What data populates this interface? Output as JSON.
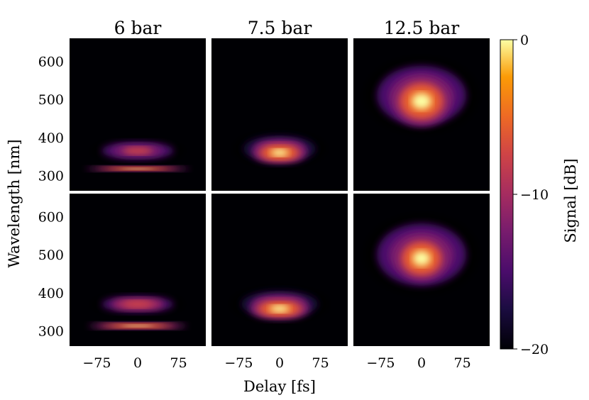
{
  "chart_data": {
    "type": "heatmap",
    "layout": {
      "rows": 2,
      "cols": 3
    },
    "column_titles": [
      "6 bar",
      "7.5 bar",
      "12.5 bar"
    ],
    "xlabel": "Delay [fs]",
    "ylabel": "Wavelength [nm]",
    "xlim": [
      -125,
      125
    ],
    "ylim": [
      260,
      660
    ],
    "xticks": [
      -75,
      0,
      75
    ],
    "xtick_labels": [
      "−75",
      "0",
      "75"
    ],
    "yticks": [
      300,
      400,
      500,
      600
    ],
    "ytick_labels": [
      "300",
      "400",
      "500",
      "600"
    ],
    "colorbar": {
      "label": "Signal [dB]",
      "range": [
        -20,
        0
      ],
      "ticks": [
        0,
        -10,
        -20
      ],
      "tick_labels": [
        "0",
        "−10",
        "−20"
      ],
      "colormap": "inferno"
    },
    "panels": [
      {
        "row": 0,
        "col": 0,
        "pressure": "6 bar",
        "features": [
          {
            "wl_center": 318,
            "wl_width": 7,
            "delay_width": 95,
            "peak_db": 0
          },
          {
            "wl_center": 365,
            "wl_width": 30,
            "delay_width": 85,
            "peak_db": -8
          }
        ]
      },
      {
        "row": 0,
        "col": 1,
        "pressure": "7.5 bar",
        "features": [
          {
            "wl_center": 360,
            "wl_width": 28,
            "delay_width": 50,
            "peak_db": 0
          },
          {
            "wl_center": 370,
            "wl_width": 45,
            "delay_width": 85,
            "peak_db": -9
          }
        ]
      },
      {
        "row": 0,
        "col": 2,
        "pressure": "12.5 bar",
        "features": [
          {
            "wl_center": 495,
            "wl_width": 65,
            "delay_width": 55,
            "peak_db": 0
          },
          {
            "wl_center": 510,
            "wl_width": 100,
            "delay_width": 105,
            "peak_db": -8
          }
        ]
      },
      {
        "row": 1,
        "col": 0,
        "pressure": "6 bar",
        "features": [
          {
            "wl_center": 313,
            "wl_width": 9,
            "delay_width": 90,
            "peak_db": 0
          },
          {
            "wl_center": 370,
            "wl_width": 28,
            "delay_width": 85,
            "peak_db": -7
          }
        ]
      },
      {
        "row": 1,
        "col": 1,
        "pressure": "7.5 bar",
        "features": [
          {
            "wl_center": 358,
            "wl_width": 28,
            "delay_width": 55,
            "peak_db": 0
          },
          {
            "wl_center": 370,
            "wl_width": 45,
            "delay_width": 90,
            "peak_db": -9
          }
        ]
      },
      {
        "row": 1,
        "col": 2,
        "pressure": "12.5 bar",
        "features": [
          {
            "wl_center": 490,
            "wl_width": 60,
            "delay_width": 50,
            "peak_db": 0
          },
          {
            "wl_center": 500,
            "wl_width": 105,
            "delay_width": 105,
            "peak_db": -8
          }
        ]
      }
    ]
  }
}
